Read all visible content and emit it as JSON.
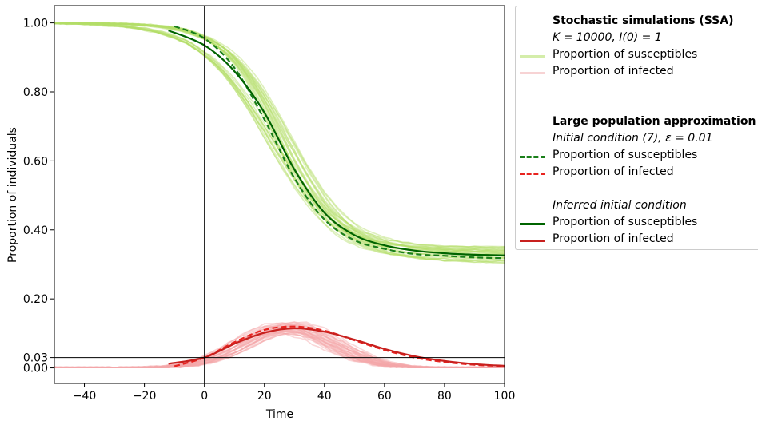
{
  "chart_data": {
    "type": "line",
    "xlabel": "Time",
    "ylabel": "Proportion of individuals",
    "xlim": [
      -50,
      100
    ],
    "ylim": [
      -0.045,
      1.05
    ],
    "x_ticks": [
      -40,
      -20,
      0,
      20,
      40,
      60,
      80,
      100
    ],
    "y_ticks": [
      0.0,
      0.03,
      0.2,
      0.4,
      0.6,
      0.8,
      1.0
    ],
    "y_tick_labels": [
      "0.00",
      "0.03",
      "0.20",
      "0.40",
      "0.60",
      "0.80",
      "1.00"
    ],
    "x_tick_labels": [
      "−40",
      "−20",
      "0",
      "20",
      "40",
      "60",
      "80",
      "100"
    ],
    "reference_lines": {
      "vertical_x": 0,
      "horizontal_y": 0.03
    },
    "grid": false,
    "legend_position": "right, outside plot",
    "colors": {
      "ssa_susceptible": "#b3de69",
      "ssa_infected": "#f4a6a8",
      "approx_susceptible": "#1a7f1a",
      "approx_infected": "#e8231f",
      "inferred_susceptible": "#006400",
      "inferred_infected": "#c8201e"
    },
    "series": [
      {
        "name": "Large population approximation, initial condition (7): proportion of susceptibles",
        "style": "dashed",
        "x": [
          -10,
          0,
          10,
          20,
          30,
          40,
          50,
          60,
          70,
          80,
          90,
          100
        ],
        "y": [
          0.99,
          0.955,
          0.87,
          0.72,
          0.55,
          0.43,
          0.37,
          0.345,
          0.33,
          0.325,
          0.32,
          0.318
        ]
      },
      {
        "name": "Large population approximation, initial condition (7): proportion of infected",
        "style": "dashed",
        "x": [
          -10,
          0,
          10,
          20,
          30,
          40,
          50,
          60,
          70,
          80,
          90,
          100
        ],
        "y": [
          0.005,
          0.03,
          0.075,
          0.11,
          0.12,
          0.108,
          0.08,
          0.052,
          0.03,
          0.017,
          0.009,
          0.005
        ]
      },
      {
        "name": "Inferred initial condition: proportion of susceptibles",
        "style": "solid",
        "x": [
          -12,
          0,
          10,
          20,
          30,
          40,
          50,
          60,
          70,
          80,
          90,
          100
        ],
        "y": [
          0.978,
          0.935,
          0.86,
          0.74,
          0.575,
          0.45,
          0.385,
          0.355,
          0.34,
          0.332,
          0.328,
          0.326
        ]
      },
      {
        "name": "Inferred initial condition: proportion of infected",
        "style": "solid",
        "x": [
          -12,
          0,
          10,
          20,
          30,
          40,
          50,
          60,
          70,
          80,
          90,
          100
        ],
        "y": [
          0.012,
          0.03,
          0.07,
          0.102,
          0.115,
          0.105,
          0.082,
          0.055,
          0.034,
          0.02,
          0.011,
          0.006
        ]
      }
    ]
  },
  "legend": {
    "ssa_title": "Stochastic simulations (SSA)",
    "ssa_params": "K = 10000, I(0) = 1",
    "ssa_s": "Proportion of susceptibles",
    "ssa_i": "Proportion of infected",
    "lpa_title": "Large population approximation",
    "lpa_sub": "Initial condition (7), ε = 0.01",
    "lpa_s": "Proportion of susceptibles",
    "lpa_i": "Proportion of infected",
    "inf_title": "Inferred initial condition",
    "inf_s": "Proportion of susceptibles",
    "inf_i": "Proportion of infected"
  }
}
